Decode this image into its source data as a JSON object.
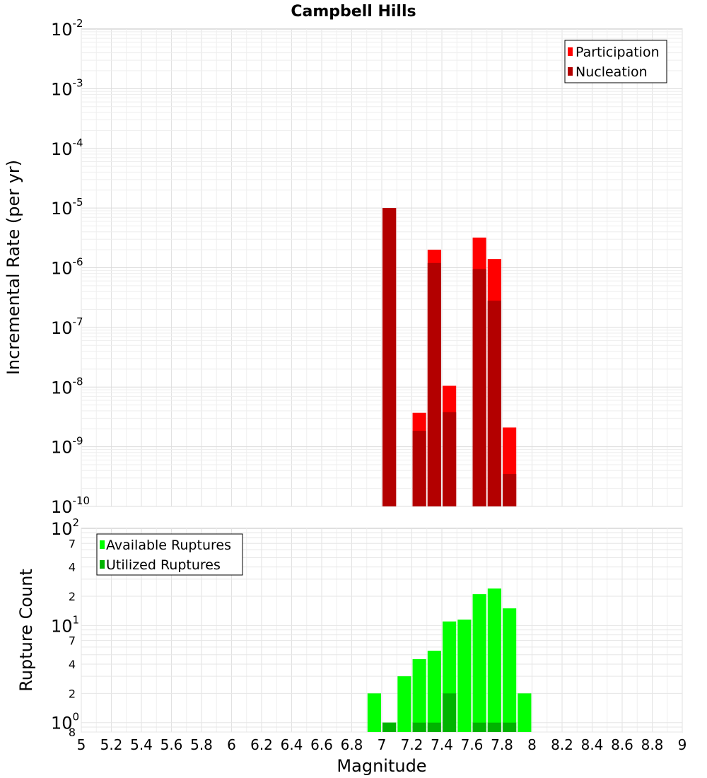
{
  "chart_data": [
    {
      "type": "bar",
      "title": "Campbell Hills",
      "xlabel": "",
      "ylabel": "Incremental Rate (per yr)",
      "y_scale": "log",
      "ylim": [
        1e-10,
        0.01
      ],
      "xlim": [
        5,
        9
      ],
      "grid": true,
      "legend_position": "top-right",
      "series": [
        {
          "name": "Participation",
          "color": "#ff0000",
          "x": [
            7.05,
            7.25,
            7.35,
            7.45,
            7.65,
            7.75,
            7.85
          ],
          "values": [
            1e-05,
            3.7e-09,
            2e-06,
            1.05e-08,
            3.2e-06,
            1.4e-06,
            2.1e-09
          ]
        },
        {
          "name": "Nucleation",
          "color": "#b30000",
          "x": [
            7.05,
            7.25,
            7.35,
            7.45,
            7.65,
            7.75,
            7.85
          ],
          "values": [
            1e-05,
            1.85e-09,
            1.2e-06,
            3.8e-09,
            9.5e-07,
            2.8e-07,
            3.5e-10
          ]
        }
      ]
    },
    {
      "type": "bar",
      "title": "",
      "xlabel": "Magnitude",
      "ylabel": "Rupture Count",
      "y_scale": "log",
      "ylim": [
        0.8,
        100
      ],
      "xlim": [
        5,
        9
      ],
      "grid": true,
      "legend_position": "top-left",
      "series": [
        {
          "name": "Available Ruptures",
          "color": "#00ff00",
          "x": [
            6.95,
            7.05,
            7.15,
            7.25,
            7.35,
            7.45,
            7.55,
            7.65,
            7.75,
            7.85,
            7.95
          ],
          "values": [
            2,
            1,
            3,
            4.5,
            5.5,
            11,
            11.5,
            21,
            24,
            15,
            2
          ]
        },
        {
          "name": "Utilized Ruptures",
          "color": "#00b300",
          "x": [
            6.95,
            7.05,
            7.15,
            7.25,
            7.35,
            7.45,
            7.55,
            7.65,
            7.75,
            7.85,
            7.95
          ],
          "values": [
            0,
            1,
            0,
            1,
            1,
            2,
            0,
            1,
            1,
            1,
            0
          ]
        }
      ]
    }
  ],
  "x_ticks": [
    "5",
    "5.2",
    "5.4",
    "5.6",
    "5.8",
    "6",
    "6.2",
    "6.4",
    "6.6",
    "6.8",
    "7",
    "7.2",
    "7.4",
    "7.6",
    "7.8",
    "8",
    "8.2",
    "8.4",
    "8.6",
    "8.8",
    "9"
  ],
  "top_y_ticks": [
    {
      "base": "10",
      "exp": "-10"
    },
    {
      "base": "10",
      "exp": "-9"
    },
    {
      "base": "10",
      "exp": "-8"
    },
    {
      "base": "10",
      "exp": "-7"
    },
    {
      "base": "10",
      "exp": "-6"
    },
    {
      "base": "10",
      "exp": "-5"
    },
    {
      "base": "10",
      "exp": "-4"
    },
    {
      "base": "10",
      "exp": "-3"
    },
    {
      "base": "10",
      "exp": "-2"
    }
  ],
  "bottom_y_ticks": [
    {
      "label": "8",
      "value": 0.8
    },
    {
      "label": "2",
      "value": 2
    },
    {
      "label": "4",
      "value": 4
    },
    {
      "label": "7",
      "value": 7
    },
    {
      "label": "2",
      "value": 20
    },
    {
      "label": "4",
      "value": 40
    },
    {
      "label": "7",
      "value": 70
    }
  ],
  "bottom_y_major_ticks": [
    {
      "base": "10",
      "exp": "0",
      "value": 1
    },
    {
      "base": "10",
      "exp": "1",
      "value": 10
    },
    {
      "base": "10",
      "exp": "2",
      "value": 100
    }
  ]
}
